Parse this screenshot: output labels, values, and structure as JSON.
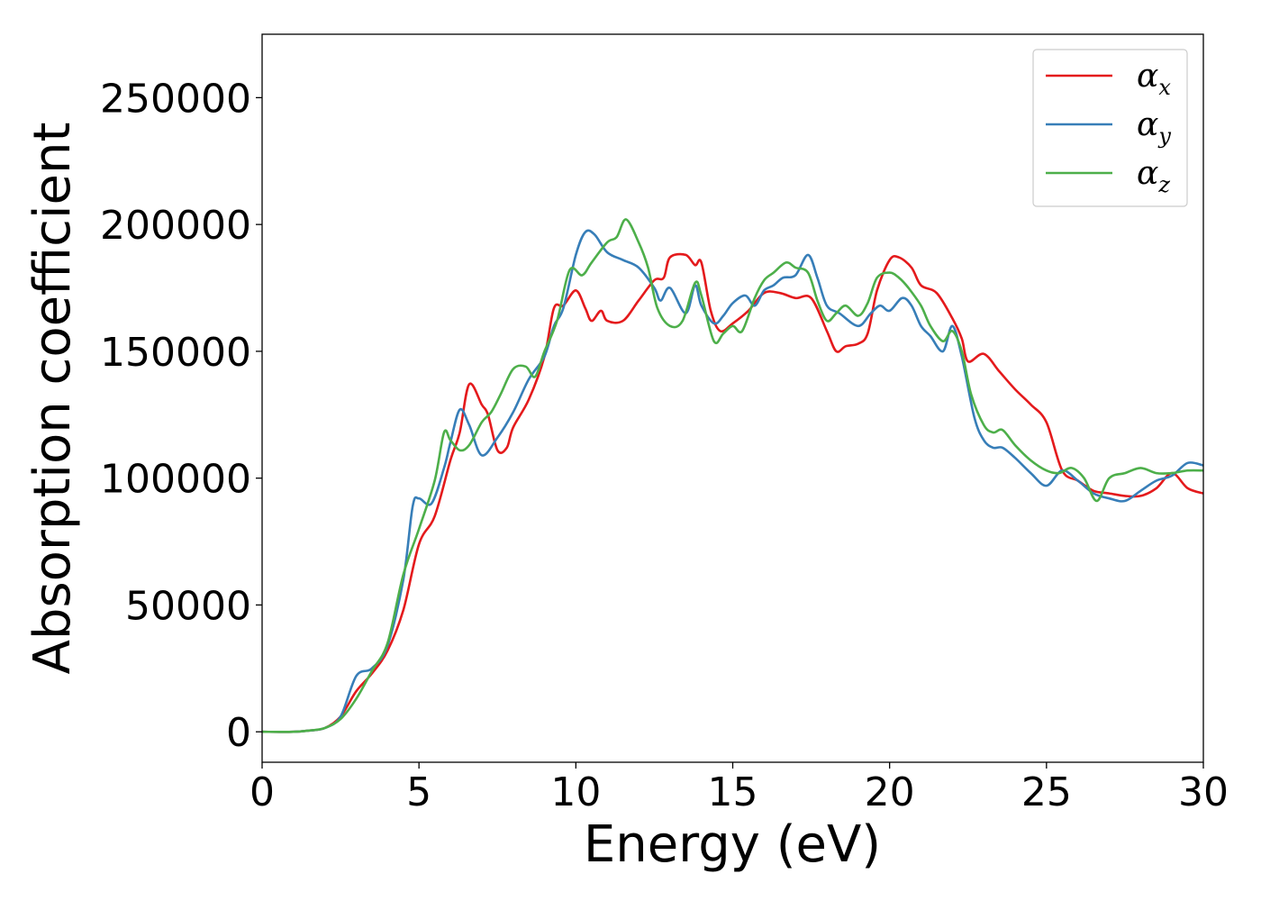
{
  "chart_data": {
    "type": "line",
    "title": "",
    "xlabel": "Energy (eV)",
    "ylabel": "Absorption coefficient",
    "xlim": [
      0,
      30
    ],
    "ylim": [
      -12000,
      275000
    ],
    "x_ticks": [
      0,
      5,
      10,
      15,
      20,
      25,
      30
    ],
    "y_ticks": [
      0,
      50000,
      100000,
      150000,
      200000,
      250000
    ],
    "grid": false,
    "legend_position": "top-right",
    "series": [
      {
        "name": "α_x",
        "base": "α",
        "sub": "x",
        "color": "#e41a1c",
        "points": [
          [
            0,
            0
          ],
          [
            1,
            0
          ],
          [
            1.5,
            500
          ],
          [
            2,
            1500
          ],
          [
            2.5,
            6000
          ],
          [
            3,
            16000
          ],
          [
            3.5,
            23000
          ],
          [
            4,
            32000
          ],
          [
            4.5,
            48000
          ],
          [
            5,
            74000
          ],
          [
            5.5,
            85000
          ],
          [
            6,
            107000
          ],
          [
            6.3,
            118000
          ],
          [
            6.6,
            137000
          ],
          [
            7,
            129000
          ],
          [
            7.2,
            125000
          ],
          [
            7.5,
            111000
          ],
          [
            7.8,
            112000
          ],
          [
            8,
            120000
          ],
          [
            8.5,
            131000
          ],
          [
            9,
            148000
          ],
          [
            9.3,
            167000
          ],
          [
            9.6,
            168000
          ],
          [
            10,
            174000
          ],
          [
            10.3,
            167000
          ],
          [
            10.5,
            162000
          ],
          [
            10.8,
            166000
          ],
          [
            11,
            162000
          ],
          [
            11.5,
            162000
          ],
          [
            12,
            170000
          ],
          [
            12.5,
            178000
          ],
          [
            12.8,
            179000
          ],
          [
            13,
            187000
          ],
          [
            13.5,
            188000
          ],
          [
            13.8,
            184000
          ],
          [
            14,
            185000
          ],
          [
            14.3,
            166000
          ],
          [
            14.6,
            158000
          ],
          [
            15,
            161000
          ],
          [
            15.5,
            166000
          ],
          [
            16,
            173000
          ],
          [
            16.5,
            173000
          ],
          [
            17,
            171000
          ],
          [
            17.5,
            171000
          ],
          [
            18,
            158000
          ],
          [
            18.3,
            150000
          ],
          [
            18.6,
            152000
          ],
          [
            19,
            153000
          ],
          [
            19.3,
            157000
          ],
          [
            19.6,
            174000
          ],
          [
            20,
            186000
          ],
          [
            20.3,
            187000
          ],
          [
            20.7,
            183000
          ],
          [
            21,
            176000
          ],
          [
            21.5,
            173000
          ],
          [
            22,
            163000
          ],
          [
            22.3,
            155000
          ],
          [
            22.5,
            146000
          ],
          [
            23,
            149000
          ],
          [
            23.5,
            142000
          ],
          [
            24,
            135000
          ],
          [
            24.5,
            129000
          ],
          [
            25,
            122000
          ],
          [
            25.5,
            103000
          ],
          [
            26,
            99000
          ],
          [
            26.5,
            95000
          ],
          [
            27,
            94000
          ],
          [
            27.5,
            93000
          ],
          [
            28,
            93000
          ],
          [
            28.5,
            96000
          ],
          [
            29,
            102000
          ],
          [
            29.5,
            96000
          ],
          [
            30,
            94000
          ]
        ]
      },
      {
        "name": "α_y",
        "base": "α",
        "sub": "y",
        "color": "#377eb8",
        "points": [
          [
            0,
            0
          ],
          [
            1,
            0
          ],
          [
            1.5,
            500
          ],
          [
            2,
            1500
          ],
          [
            2.5,
            6000
          ],
          [
            3,
            22000
          ],
          [
            3.5,
            25000
          ],
          [
            4,
            34000
          ],
          [
            4.5,
            60000
          ],
          [
            4.8,
            89000
          ],
          [
            5,
            92000
          ],
          [
            5.4,
            90000
          ],
          [
            5.8,
            104000
          ],
          [
            6,
            114000
          ],
          [
            6.3,
            127000
          ],
          [
            6.6,
            121000
          ],
          [
            7,
            109000
          ],
          [
            7.5,
            116000
          ],
          [
            8,
            126000
          ],
          [
            8.5,
            139000
          ],
          [
            9,
            148000
          ],
          [
            9.3,
            160000
          ],
          [
            9.6,
            167000
          ],
          [
            10,
            188000
          ],
          [
            10.3,
            197000
          ],
          [
            10.6,
            196000
          ],
          [
            11,
            189000
          ],
          [
            11.5,
            186000
          ],
          [
            12,
            183000
          ],
          [
            12.5,
            175000
          ],
          [
            12.7,
            170000
          ],
          [
            13,
            175000
          ],
          [
            13.5,
            165000
          ],
          [
            13.8,
            176000
          ],
          [
            14,
            168000
          ],
          [
            14.4,
            161000
          ],
          [
            14.7,
            164000
          ],
          [
            15,
            169000
          ],
          [
            15.4,
            172000
          ],
          [
            15.7,
            168000
          ],
          [
            16,
            174000
          ],
          [
            16.3,
            176000
          ],
          [
            16.6,
            179000
          ],
          [
            17,
            180000
          ],
          [
            17.4,
            188000
          ],
          [
            17.7,
            179000
          ],
          [
            18,
            168000
          ],
          [
            18.4,
            165000
          ],
          [
            19,
            160000
          ],
          [
            19.4,
            165000
          ],
          [
            19.7,
            168000
          ],
          [
            20,
            166000
          ],
          [
            20.4,
            171000
          ],
          [
            20.7,
            168000
          ],
          [
            21,
            160000
          ],
          [
            21.3,
            156000
          ],
          [
            21.7,
            150000
          ],
          [
            22,
            160000
          ],
          [
            22.3,
            148000
          ],
          [
            22.7,
            124000
          ],
          [
            23,
            115000
          ],
          [
            23.3,
            112000
          ],
          [
            23.6,
            112000
          ],
          [
            24,
            108000
          ],
          [
            24.5,
            102000
          ],
          [
            25,
            97000
          ],
          [
            25.5,
            103000
          ],
          [
            26,
            99000
          ],
          [
            26.5,
            94000
          ],
          [
            27,
            92000
          ],
          [
            27.5,
            91000
          ],
          [
            28,
            95000
          ],
          [
            28.5,
            99000
          ],
          [
            29,
            101000
          ],
          [
            29.5,
            106000
          ],
          [
            30,
            105000
          ]
        ]
      },
      {
        "name": "α_z",
        "base": "α",
        "sub": "z",
        "color": "#4daf4a",
        "points": [
          [
            0,
            0
          ],
          [
            1,
            0
          ],
          [
            1.5,
            500
          ],
          [
            2,
            1500
          ],
          [
            2.5,
            5000
          ],
          [
            3,
            13000
          ],
          [
            3.5,
            24000
          ],
          [
            4,
            35000
          ],
          [
            4.5,
            62000
          ],
          [
            5,
            80000
          ],
          [
            5.5,
            99000
          ],
          [
            5.8,
            118000
          ],
          [
            6,
            115000
          ],
          [
            6.3,
            111000
          ],
          [
            6.6,
            113000
          ],
          [
            7,
            122000
          ],
          [
            7.3,
            126000
          ],
          [
            7.6,
            133000
          ],
          [
            8,
            143000
          ],
          [
            8.4,
            144000
          ],
          [
            8.7,
            140000
          ],
          [
            9,
            150000
          ],
          [
            9.4,
            162000
          ],
          [
            9.8,
            182000
          ],
          [
            10.2,
            180000
          ],
          [
            10.5,
            185000
          ],
          [
            11,
            193000
          ],
          [
            11.3,
            195000
          ],
          [
            11.6,
            202000
          ],
          [
            12,
            193000
          ],
          [
            12.3,
            183000
          ],
          [
            12.6,
            167000
          ],
          [
            13,
            160000
          ],
          [
            13.4,
            162000
          ],
          [
            13.8,
            177000
          ],
          [
            14,
            172000
          ],
          [
            14.4,
            154000
          ],
          [
            14.7,
            157000
          ],
          [
            15,
            160000
          ],
          [
            15.3,
            158000
          ],
          [
            15.7,
            171000
          ],
          [
            16,
            178000
          ],
          [
            16.3,
            181000
          ],
          [
            16.7,
            185000
          ],
          [
            17,
            183000
          ],
          [
            17.4,
            181000
          ],
          [
            17.7,
            170000
          ],
          [
            18,
            162000
          ],
          [
            18.3,
            165000
          ],
          [
            18.6,
            168000
          ],
          [
            19,
            164000
          ],
          [
            19.3,
            169000
          ],
          [
            19.6,
            179000
          ],
          [
            20,
            181000
          ],
          [
            20.3,
            179000
          ],
          [
            20.6,
            175000
          ],
          [
            21,
            168000
          ],
          [
            21.3,
            160000
          ],
          [
            21.7,
            154000
          ],
          [
            22,
            158000
          ],
          [
            22.3,
            150000
          ],
          [
            22.6,
            133000
          ],
          [
            23,
            121000
          ],
          [
            23.3,
            118000
          ],
          [
            23.6,
            119000
          ],
          [
            24,
            113000
          ],
          [
            24.5,
            107000
          ],
          [
            25,
            103000
          ],
          [
            25.4,
            102000
          ],
          [
            25.8,
            104000
          ],
          [
            26.2,
            100000
          ],
          [
            26.6,
            91000
          ],
          [
            27,
            100000
          ],
          [
            27.5,
            102000
          ],
          [
            28,
            104000
          ],
          [
            28.5,
            102000
          ],
          [
            29,
            102000
          ],
          [
            29.5,
            103000
          ],
          [
            30,
            103000
          ]
        ]
      }
    ]
  }
}
